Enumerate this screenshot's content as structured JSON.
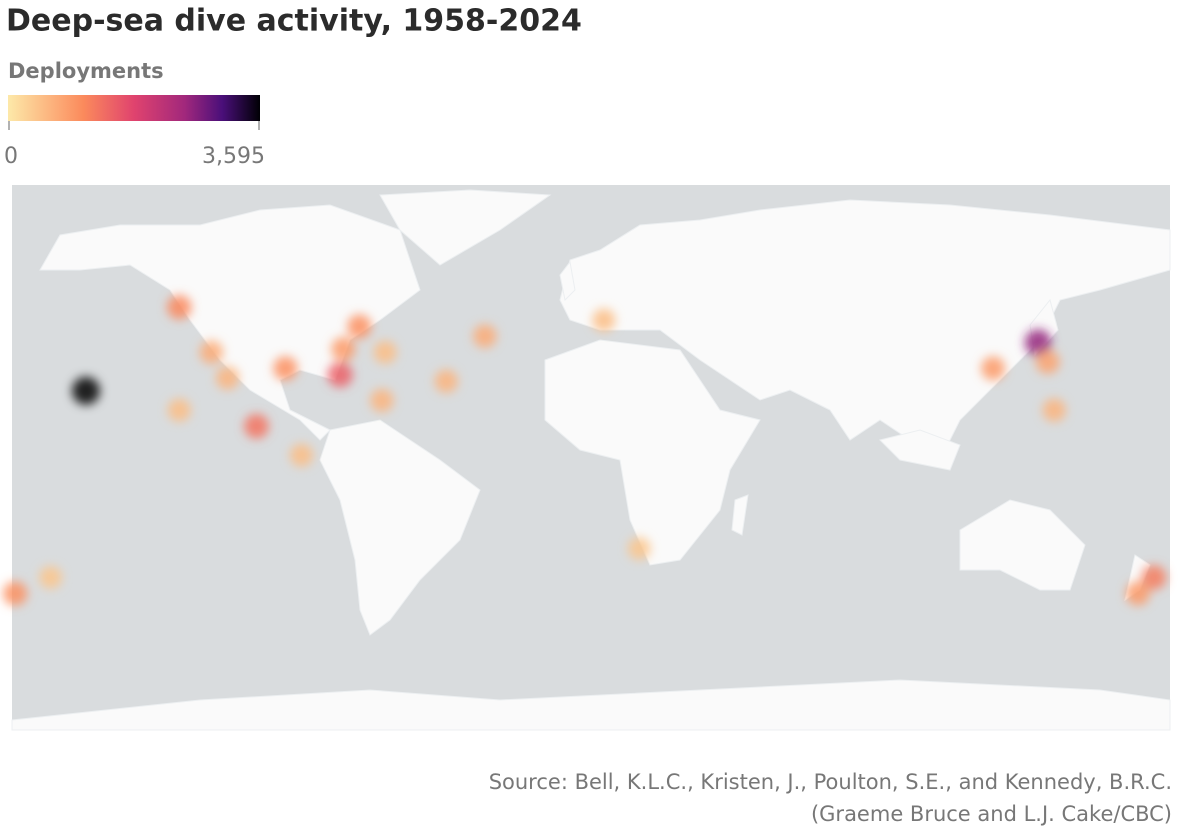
{
  "title": "Deep-sea dive activity, 1958-2024",
  "legend": {
    "title": "Deployments",
    "ticks": [
      0,
      {
        "value": 3595,
        "label": "3,595"
      }
    ]
  },
  "hotspots": [
    {
      "lon": -157,
      "lat": 20,
      "value": 3595
    },
    {
      "lon": 139,
      "lat": 35,
      "value": 2600
    },
    {
      "lon": 125,
      "lat": 27,
      "value": 900
    },
    {
      "lon": 142,
      "lat": 29,
      "value": 800
    },
    {
      "lon": 144,
      "lat": 14,
      "value": 600
    },
    {
      "lon": 175,
      "lat": -38,
      "value": 1200
    },
    {
      "lon": 170,
      "lat": -43,
      "value": 900
    },
    {
      "lon": -78,
      "lat": 25,
      "value": 1500
    },
    {
      "lon": -95,
      "lat": 27,
      "value": 1000
    },
    {
      "lon": -72,
      "lat": 40,
      "value": 1000
    },
    {
      "lon": -77,
      "lat": 33,
      "value": 900
    },
    {
      "lon": -128,
      "lat": 46,
      "value": 1100
    },
    {
      "lon": -118,
      "lat": 32,
      "value": 700
    },
    {
      "lon": -113,
      "lat": 24,
      "value": 600
    },
    {
      "lon": -104,
      "lat": 9,
      "value": 1300
    },
    {
      "lon": -90,
      "lat": 0,
      "value": 500
    },
    {
      "lon": -33,
      "lat": 37,
      "value": 700
    },
    {
      "lon": -45,
      "lat": 23,
      "value": 600
    },
    {
      "lon": -65,
      "lat": 17,
      "value": 600
    },
    {
      "lon": -64,
      "lat": 32,
      "value": 500
    },
    {
      "lon": 4,
      "lat": 42,
      "value": 500
    },
    {
      "lon": 15,
      "lat": -29,
      "value": 400
    },
    {
      "lon": -179,
      "lat": -43,
      "value": 1000
    },
    {
      "lon": -168,
      "lat": -38,
      "value": 400
    },
    {
      "lon": -128,
      "lat": 14,
      "value": 500
    }
  ],
  "source": [
    "Source: Bell, K.L.C., Kristen, J., Poulton, S.E., and Kennedy, B.R.C.",
    "(Graeme Bruce and L.J. Cake/CBC)"
  ]
}
